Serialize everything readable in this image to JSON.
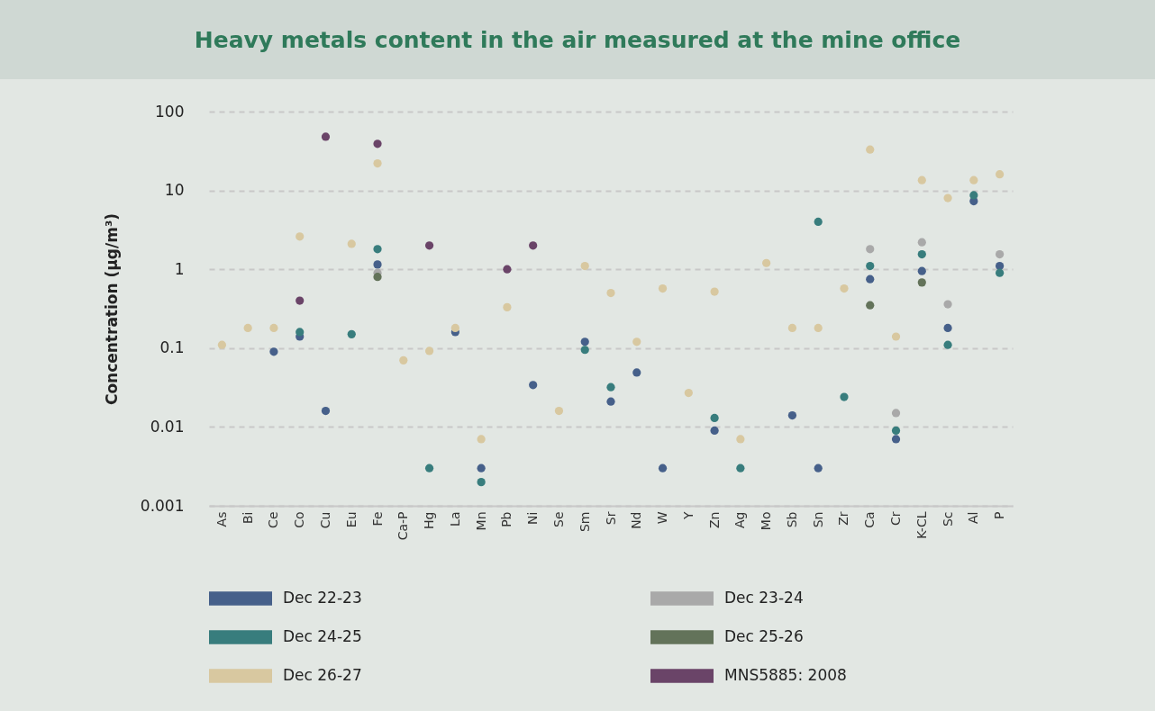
{
  "chart_data": {
    "type": "scatter",
    "title": "Heavy metals content in the air measured at the mine office",
    "ylabel": "Concentration (µg/m³)",
    "categories": [
      "As",
      "Bi",
      "Ce",
      "Co",
      "Cu",
      "Eu",
      "Fe",
      "Ca-P",
      "Hg",
      "La",
      "Mn",
      "Pb",
      "Ni",
      "Se",
      "Sm",
      "Sr",
      "Nd",
      "W",
      "Y",
      "Zn",
      "Ag",
      "Mo",
      "Sb",
      "Sn",
      "Zr",
      "Ca",
      "Cr",
      "K-CL",
      "Sc",
      "Al",
      "P"
    ],
    "series": [
      {
        "name": "Dec 22-23",
        "color": "#46608a",
        "values": [
          null,
          null,
          0.09,
          0.14,
          0.016,
          null,
          1.15,
          null,
          null,
          0.16,
          0.003,
          null,
          0.034,
          null,
          0.12,
          0.021,
          0.049,
          0.003,
          null,
          0.009,
          null,
          null,
          0.014,
          0.003,
          null,
          0.75,
          0.007,
          0.95,
          0.18,
          7.3,
          1.1
        ]
      },
      {
        "name": "Dec 23-24",
        "color": "#a9a9a9",
        "values": [
          null,
          null,
          null,
          null,
          null,
          null,
          0.9,
          null,
          null,
          null,
          null,
          null,
          null,
          null,
          null,
          null,
          null,
          null,
          null,
          null,
          null,
          null,
          null,
          null,
          null,
          1.8,
          0.015,
          2.2,
          0.36,
          null,
          1.55
        ]
      },
      {
        "name": "Dec 24-25",
        "color": "#387d7d",
        "values": [
          null,
          null,
          null,
          0.16,
          null,
          0.15,
          1.8,
          null,
          0.003,
          null,
          0.002,
          null,
          null,
          null,
          0.095,
          0.032,
          null,
          null,
          null,
          0.013,
          0.003,
          null,
          null,
          4.0,
          0.024,
          1.1,
          0.009,
          1.55,
          0.11,
          8.7,
          0.9
        ]
      },
      {
        "name": "Dec 25-26",
        "color": "#63735a",
        "values": [
          null,
          null,
          null,
          null,
          null,
          null,
          0.8,
          null,
          null,
          null,
          null,
          null,
          null,
          null,
          null,
          null,
          null,
          null,
          null,
          null,
          null,
          null,
          null,
          null,
          null,
          0.35,
          null,
          0.68,
          null,
          null,
          null
        ]
      },
      {
        "name": "Dec 26-27",
        "color": "#d8c8a0",
        "values": [
          0.11,
          0.18,
          0.18,
          2.6,
          null,
          2.1,
          22,
          0.07,
          0.092,
          0.18,
          0.007,
          0.33,
          null,
          0.016,
          1.1,
          0.5,
          0.12,
          0.57,
          0.027,
          0.52,
          0.007,
          1.2,
          0.18,
          0.18,
          0.57,
          33,
          0.14,
          13.5,
          8,
          13.5,
          16
        ]
      },
      {
        "name": "MNS5885: 2008",
        "color": "#6a4468",
        "values": [
          null,
          null,
          null,
          0.4,
          48,
          null,
          39,
          null,
          2.0,
          null,
          null,
          1.0,
          2.0,
          null,
          null,
          null,
          null,
          null,
          null,
          null,
          null,
          null,
          null,
          null,
          null,
          null,
          null,
          null,
          null,
          null,
          null
        ]
      }
    ],
    "ylim": [
      0.001,
      100
    ],
    "yticks": [
      0.001,
      0.01,
      0.1,
      1,
      10,
      100
    ],
    "log": true,
    "grid": "y",
    "legend": "bottom",
    "marker": "circle"
  }
}
